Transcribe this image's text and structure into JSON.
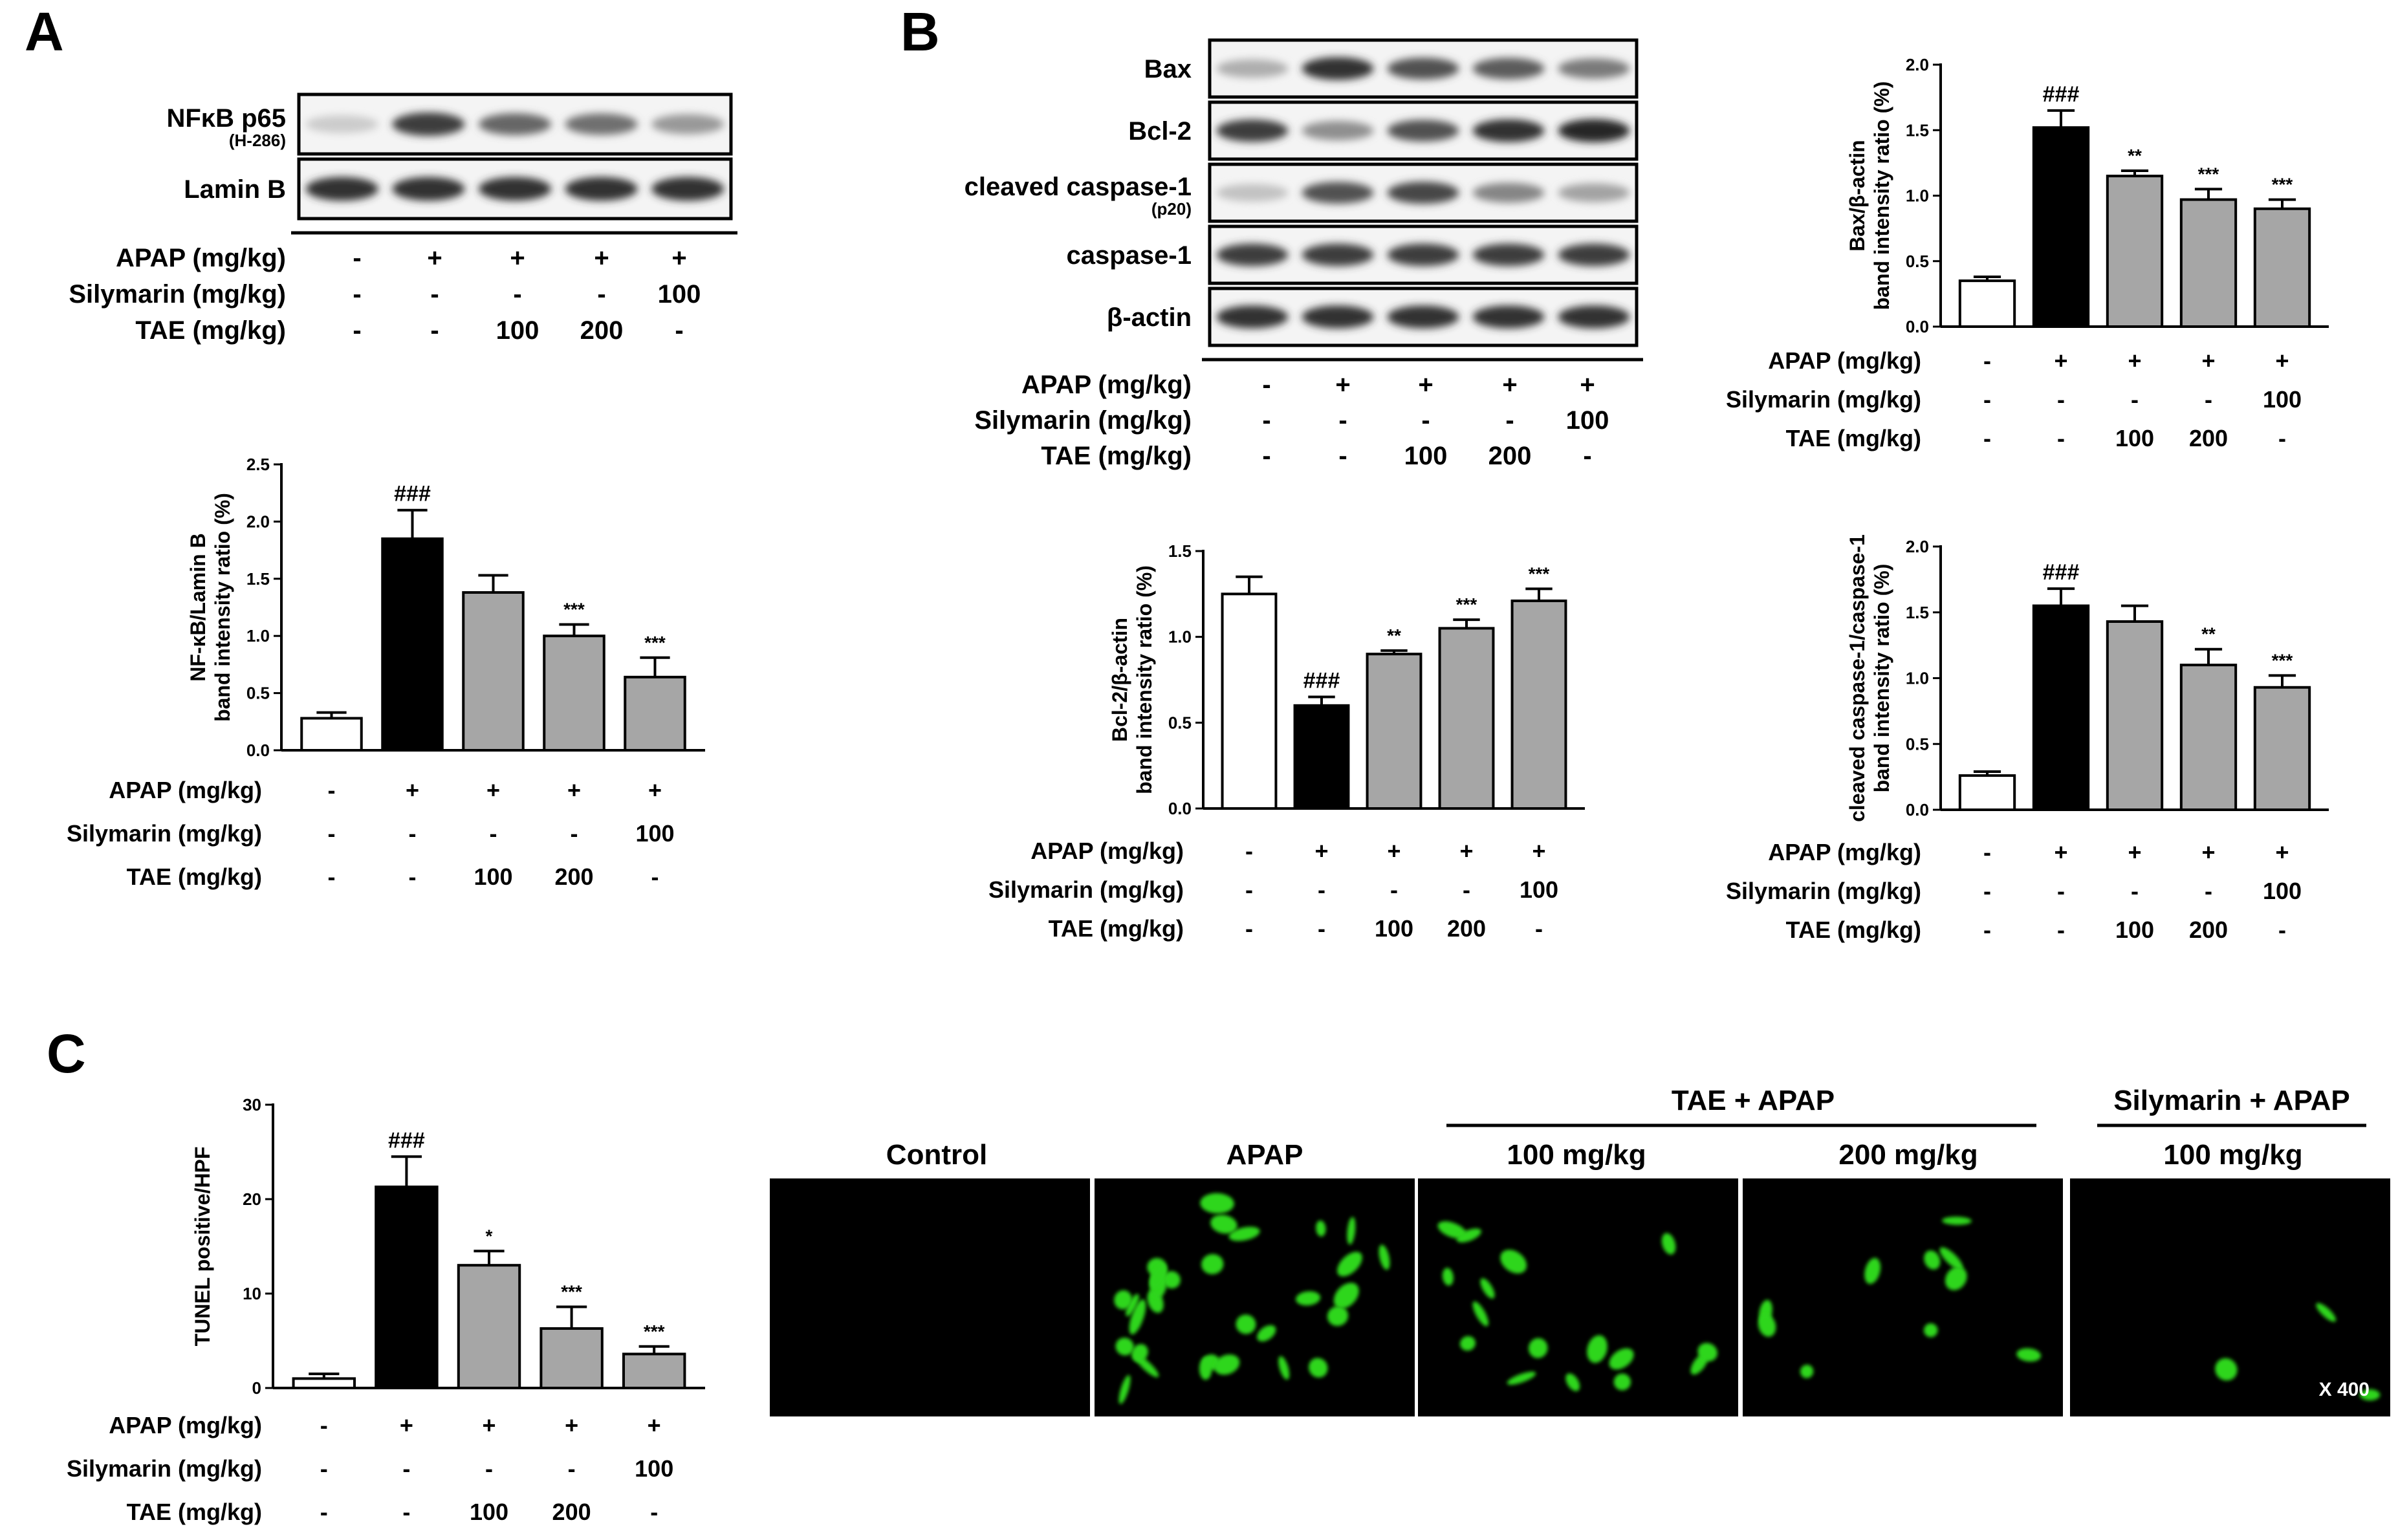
{
  "panels": {
    "A": "A",
    "B": "B",
    "C": "C"
  },
  "conditions": {
    "labels": [
      "APAP (mg/kg)",
      "Silymarin (mg/kg)",
      "TAE (mg/kg)"
    ],
    "rows": [
      [
        "-",
        "+",
        "+",
        "+",
        "+"
      ],
      [
        "-",
        "-",
        "-",
        "-",
        "100"
      ],
      [
        "-",
        "-",
        "100",
        "200",
        "-"
      ]
    ]
  },
  "colors": {
    "control": "#ffffff",
    "apap": "#000000",
    "treated": "#a6a6a6",
    "tunel_green": "#2fd61e"
  },
  "blots": {
    "A": [
      {
        "label": "NFκB p65",
        "sub": "(H-286)",
        "intensity": [
          0.15,
          0.85,
          0.65,
          0.6,
          0.4
        ]
      },
      {
        "label": "Lamin B",
        "sub": "",
        "intensity": [
          0.9,
          0.9,
          0.9,
          0.9,
          0.9
        ]
      }
    ],
    "B": [
      {
        "label": "Bax",
        "sub": "",
        "intensity": [
          0.3,
          0.9,
          0.75,
          0.7,
          0.55
        ]
      },
      {
        "label": "Bcl-2",
        "sub": "",
        "intensity": [
          0.85,
          0.45,
          0.75,
          0.9,
          0.95
        ]
      },
      {
        "label": "cleaved caspase-1",
        "sub": "(p20)",
        "intensity": [
          0.2,
          0.75,
          0.8,
          0.5,
          0.35
        ]
      },
      {
        "label": "caspase-1",
        "sub": "",
        "intensity": [
          0.85,
          0.85,
          0.85,
          0.85,
          0.85
        ]
      },
      {
        "label": "β-actin",
        "sub": "",
        "intensity": [
          0.9,
          0.9,
          0.9,
          0.9,
          0.9
        ]
      }
    ]
  },
  "chart_data": [
    {
      "type": "bar",
      "categories": [
        "Control",
        "APAP",
        "APAP+TAE 100",
        "APAP+TAE 200",
        "APAP+Silymarin 100"
      ],
      "values": [
        0.28,
        1.85,
        1.38,
        1.0,
        0.64
      ],
      "errors": [
        0.05,
        0.25,
        0.15,
        0.1,
        0.17
      ],
      "annotations": [
        "",
        "###",
        "",
        "***",
        "***"
      ],
      "ylabel_lines": [
        "NF-κB/Lamin B",
        "band intensity ratio (%)"
      ],
      "ylim": [
        0,
        2.5
      ],
      "yticks": [
        "0.0",
        "0.5",
        "1.0",
        "1.5",
        "2.0",
        "2.5"
      ]
    },
    {
      "type": "bar",
      "categories": [
        "Control",
        "APAP",
        "APAP+TAE 100",
        "APAP+TAE 200",
        "APAP+Silymarin 100"
      ],
      "values": [
        0.35,
        1.52,
        1.15,
        0.97,
        0.9
      ],
      "errors": [
        0.03,
        0.13,
        0.04,
        0.08,
        0.07
      ],
      "annotations": [
        "",
        "###",
        "**",
        "***",
        "***"
      ],
      "ylabel_lines": [
        "Bax/β-actin",
        "band intensity ratio (%)"
      ],
      "ylim": [
        0,
        2.0
      ],
      "yticks": [
        "0.0",
        "0.5",
        "1.0",
        "1.5",
        "2.0"
      ]
    },
    {
      "type": "bar",
      "categories": [
        "Control",
        "APAP",
        "APAP+TAE 100",
        "APAP+TAE 200",
        "APAP+Silymarin 100"
      ],
      "values": [
        1.25,
        0.6,
        0.9,
        1.05,
        1.21
      ],
      "errors": [
        0.1,
        0.05,
        0.02,
        0.05,
        0.07
      ],
      "annotations": [
        "",
        "###",
        "**",
        "***",
        "***"
      ],
      "ylabel_lines": [
        "Bcl-2/β-actin",
        "band intensity ratio (%)"
      ],
      "ylim": [
        0,
        1.5
      ],
      "yticks": [
        "0.0",
        "0.5",
        "1.0",
        "1.5"
      ]
    },
    {
      "type": "bar",
      "categories": [
        "Control",
        "APAP",
        "APAP+TAE 100",
        "APAP+TAE 200",
        "APAP+Silymarin 100"
      ],
      "values": [
        0.26,
        1.55,
        1.43,
        1.1,
        0.93
      ],
      "errors": [
        0.03,
        0.13,
        0.12,
        0.12,
        0.09
      ],
      "annotations": [
        "",
        "###",
        "",
        "**",
        "***"
      ],
      "ylabel_lines": [
        "cleaved caspase-1/caspase-1",
        "band intensity ratio (%)"
      ],
      "ylim": [
        0,
        2.0
      ],
      "yticks": [
        "0.0",
        "0.5",
        "1.0",
        "1.5",
        "2.0"
      ]
    },
    {
      "type": "bar",
      "categories": [
        "Control",
        "APAP",
        "APAP+TAE 100",
        "APAP+TAE 200",
        "APAP+Silymarin 100"
      ],
      "values": [
        1.0,
        21.3,
        13.0,
        6.3,
        3.6
      ],
      "errors": [
        0.5,
        3.2,
        1.5,
        2.3,
        0.8
      ],
      "annotations": [
        "",
        "###",
        "*",
        "***",
        "***"
      ],
      "ylabel_lines": [
        "TUNEL positive/HPF"
      ],
      "ylim": [
        0,
        30
      ],
      "yticks": [
        "0",
        "10",
        "20",
        "30"
      ]
    }
  ],
  "microscopy": {
    "labels": [
      "Control",
      "APAP",
      "100 mg/kg",
      "200 mg/kg",
      "100 mg/kg"
    ],
    "group_tae": "TAE + APAP",
    "group_sily": "Silymarin + APAP",
    "magnification": "X 400",
    "spot_counts": [
      0,
      30,
      16,
      10,
      3
    ]
  }
}
